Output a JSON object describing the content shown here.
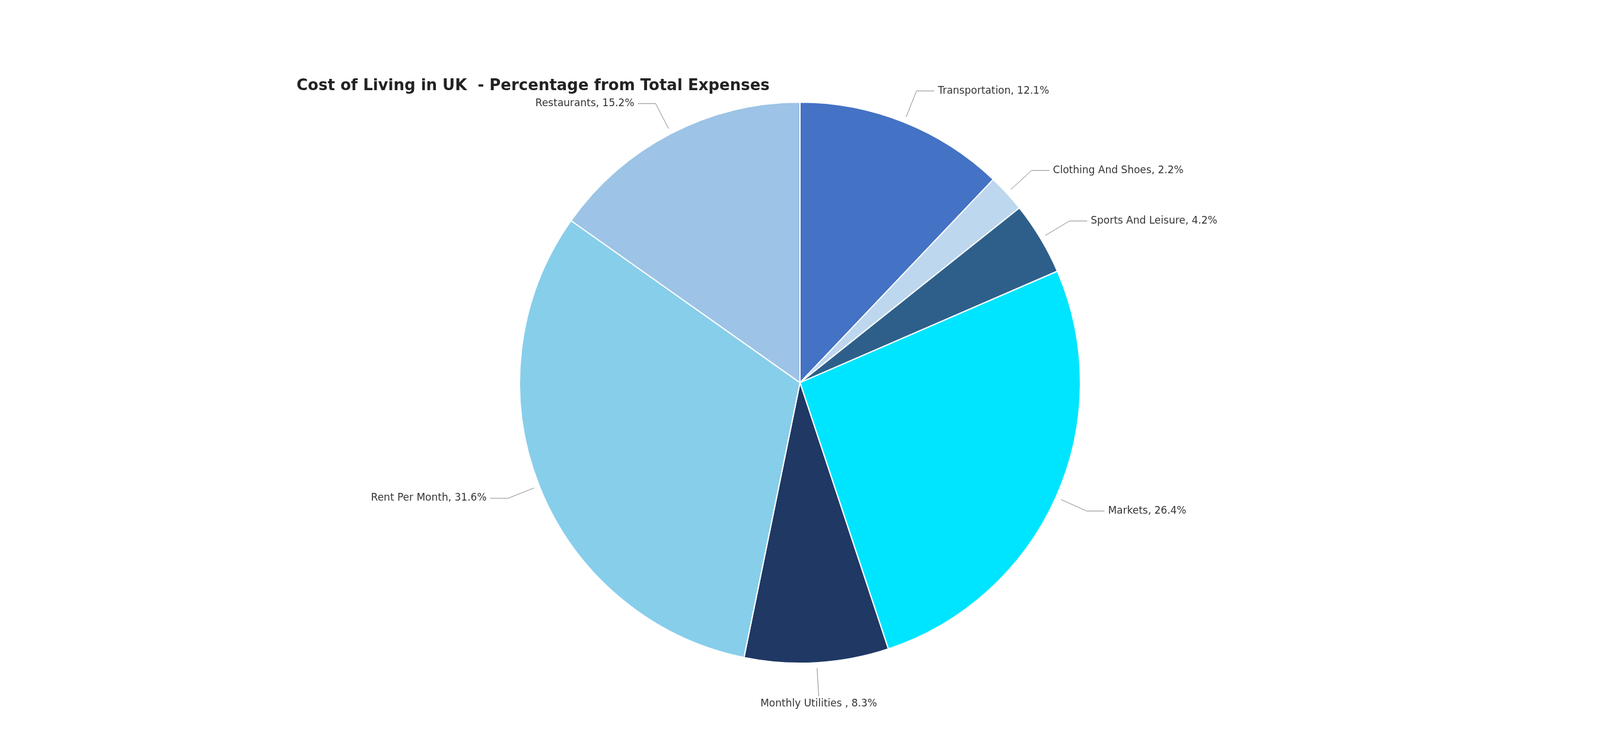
{
  "chart_data": {
    "type": "pie",
    "title": "Cost of Living in UK  - Percentage from Total Expenses",
    "categories": [
      "Transportation",
      "Clothing And Shoes",
      "Sports And Leisure",
      "Markets",
      "Monthly Utilities ",
      "Rent Per Month",
      "Restaurants"
    ],
    "values": [
      12.1,
      2.2,
      4.2,
      26.4,
      8.3,
      31.6,
      15.2
    ],
    "value_labels": [
      "Transportation, 12.1%",
      "Clothing And Shoes, 2.2%",
      "Sports And Leisure, 4.2%",
      "Markets, 26.4%",
      "Monthly Utilities , 8.3%",
      "Rent Per Month, 31.6%",
      "Restaurants, 15.2%"
    ],
    "colors": [
      "#4472C4",
      "#BDD7EE",
      "#2E5F8A",
      "#00E5FF",
      "#1F3864",
      "#87CEEB",
      "#9DC3E6"
    ],
    "data_labels": true
  }
}
